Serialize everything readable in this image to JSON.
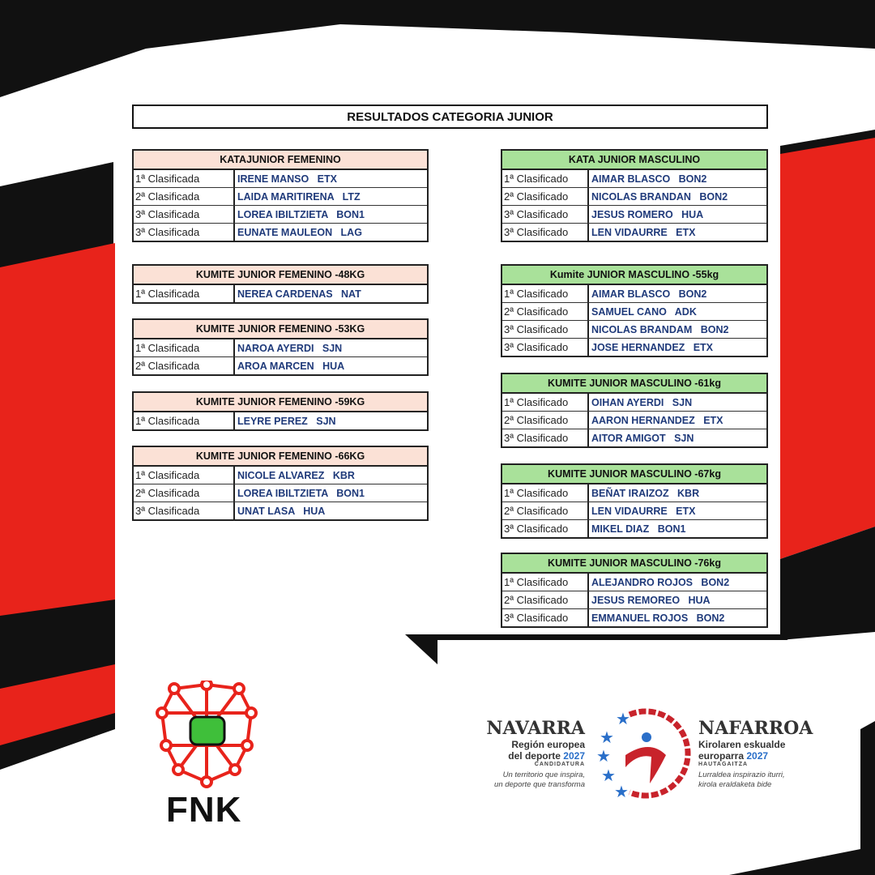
{
  "title": "RESULTADOS CATEGORIA JUNIOR",
  "colors": {
    "female_header": "#fbe1d6",
    "male_header": "#a9e19a",
    "name_text": "#1f3a7a",
    "brand_red": "#e8231b"
  },
  "female_tables": [
    {
      "header": "KATAJUNIOR FEMENINO",
      "rows": [
        [
          "1ª Clasificada",
          "IRENE MANSO   ETX"
        ],
        [
          "2ª Clasificada",
          "LAIDA MARITIRENA   LTZ"
        ],
        [
          "3ª Clasificada",
          "LOREA IBILTZIETA   BON1"
        ],
        [
          "3ª Clasificada",
          "EUNATE MAULEON   LAG"
        ]
      ]
    },
    {
      "header": "KUMITE JUNIOR FEMENINO -48KG",
      "rows": [
        [
          "1ª Clasificada",
          "NEREA CARDENAS   NAT"
        ]
      ]
    },
    {
      "header": "KUMITE JUNIOR FEMENINO -53KG",
      "rows": [
        [
          "1ª Clasificada",
          "NAROA AYERDI   SJN"
        ],
        [
          "2ª Clasificada",
          "AROA MARCEN   HUA"
        ]
      ]
    },
    {
      "header": "KUMITE JUNIOR FEMENINO -59KG",
      "rows": [
        [
          "1ª Clasificada",
          "LEYRE PEREZ   SJN"
        ]
      ]
    },
    {
      "header": "KUMITE JUNIOR FEMENINO -66KG",
      "rows": [
        [
          "1ª Clasificada",
          "NICOLE ALVAREZ   KBR"
        ],
        [
          "2ª Clasificada",
          "LOREA IBILTZIETA   BON1"
        ],
        [
          "3ª Clasificada",
          "UNAT LASA   HUA"
        ]
      ]
    }
  ],
  "male_tables": [
    {
      "header": "KATA JUNIOR MASCULINO",
      "rows": [
        [
          "1ª Clasificado",
          "AIMAR BLASCO   BON2"
        ],
        [
          "2ª Clasificado",
          "NICOLAS BRANDAN   BON2"
        ],
        [
          "3ª Clasificado",
          "JESUS ROMERO   HUA"
        ],
        [
          "3ª Clasificado",
          "LEN VIDAURRE   ETX"
        ]
      ]
    },
    {
      "header": "Kumite JUNIOR MASCULINO -55kg",
      "rows": [
        [
          "1ª Clasificado",
          "AIMAR BLASCO   BON2"
        ],
        [
          "2ª Clasificado",
          "SAMUEL CANO   ADK"
        ],
        [
          "3ª Clasificado",
          "NICOLAS BRANDAM   BON2"
        ],
        [
          "3ª Clasificado",
          "JOSE HERNANDEZ   ETX"
        ]
      ]
    },
    {
      "header": "KUMITE JUNIOR MASCULINO -61kg",
      "rows": [
        [
          "1ª Clasificado",
          "OIHAN AYERDI   SJN"
        ],
        [
          "2ª Clasificado",
          "AARON HERNANDEZ   ETX"
        ],
        [
          "3ª Clasificado",
          "AITOR AMIGOT   SJN"
        ]
      ]
    },
    {
      "header": "KUMITE JUNIOR MASCULINO -67kg",
      "rows": [
        [
          "1ª Clasificado",
          "BEÑAT IRAIZOZ   KBR"
        ],
        [
          "2ª Clasificado",
          "LEN VIDAURRE   ETX"
        ],
        [
          "3ª Clasificado",
          "MIKEL DIAZ   BON1"
        ]
      ]
    },
    {
      "header": "KUMITE JUNIOR MASCULINO -76kg",
      "rows": [
        [
          "1ª Clasificado",
          "ALEJANDRO ROJOS   BON2"
        ],
        [
          "2ª Clasificado",
          "JESUS REMOREO   HUA"
        ],
        [
          "3ª Clasificado",
          "EMMANUEL ROJOS   BON2"
        ]
      ]
    }
  ],
  "fnk_logo": {
    "text": "FNK"
  },
  "navarra_logo": {
    "left_title": "NAVARRA",
    "left_sub1": "Región europea",
    "left_sub2": "del deporte ",
    "year": "2027",
    "left_tag": "CANDIDATURA",
    "left_slogan1": "Un territorio que inspira,",
    "left_slogan2": "un deporte que transforma",
    "right_title": "NAFARROA",
    "right_sub1": "Kirolaren eskualde",
    "right_sub2": "europarra ",
    "right_tag": "HAUTAGAITZA",
    "right_slogan1": "Lurraldea inspirazio iturri,",
    "right_slogan2": "kirola eraldaketa bide"
  }
}
